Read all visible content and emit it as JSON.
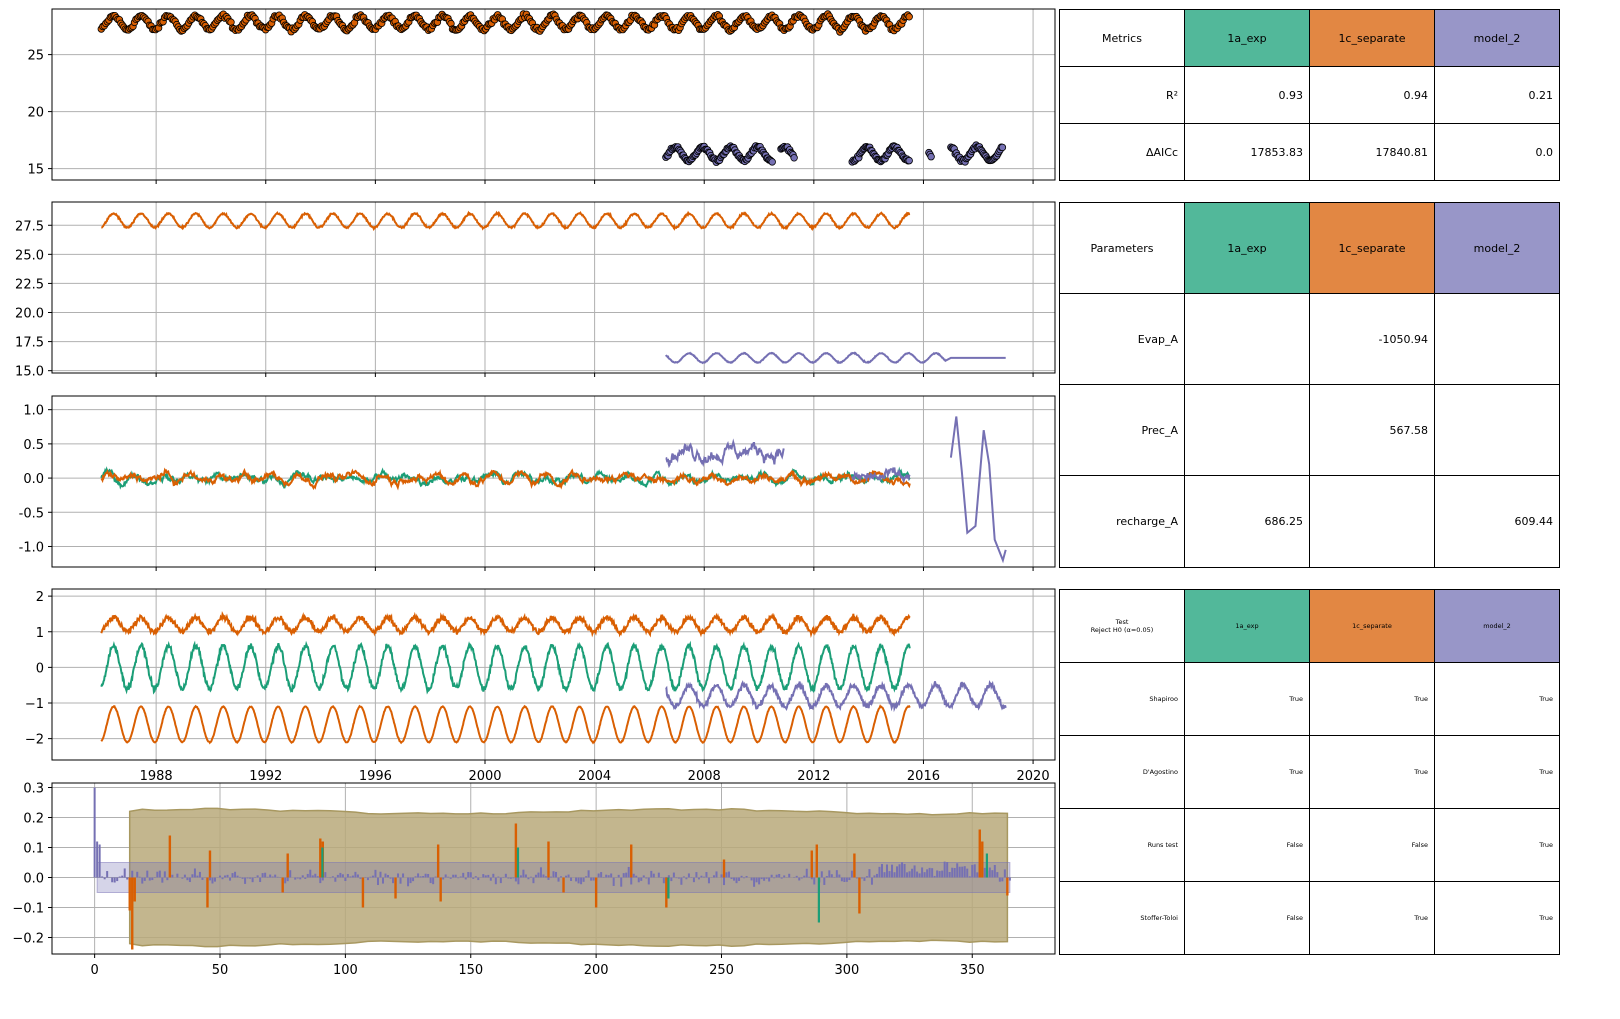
{
  "colors": {
    "green": "#1b9e77",
    "orange": "#d95f02",
    "purple": "#7570b3",
    "band": "#b8a97a",
    "grid": "#b0b0b0"
  },
  "chart_data": [
    {
      "type": "scatter",
      "ylim": [
        14,
        29
      ],
      "yticks": [
        "25",
        "20",
        "15"
      ],
      "series": [
        {
          "color": "orange",
          "x": [
            1986.0,
            2015.5
          ],
          "mean": 27.8,
          "amp": 0.6
        },
        {
          "color": "purple",
          "segments": [
            [
              2006.6,
              2010.5
            ],
            [
              2010.8,
              2011.3
            ],
            [
              2013.4,
              2015.5
            ],
            [
              2016.2,
              2016.3
            ],
            [
              2017.0,
              2018.9
            ]
          ],
          "mean": 16.3,
          "amp": 0.6
        }
      ]
    },
    {
      "type": "line",
      "ylim": [
        14.8,
        29.5
      ],
      "yticks": [
        "27.5",
        "25.0",
        "22.5",
        "20.0",
        "17.5",
        "15.0"
      ],
      "series": [
        {
          "color": "orange",
          "x": [
            1986.0,
            2015.5
          ],
          "mean": 27.9,
          "amp": 0.6
        },
        {
          "color": "purple",
          "x": [
            2006.6,
            2019.0
          ],
          "mean": 16.1,
          "amp": 0.4
        }
      ]
    },
    {
      "type": "line",
      "ylim": [
        -1.3,
        1.2
      ],
      "yticks": [
        "1.0",
        "0.5",
        "0.0",
        "-0.5",
        "-1.0"
      ],
      "series": [
        {
          "color": "green",
          "x": [
            1986.0,
            2015.5
          ]
        },
        {
          "color": "orange",
          "x": [
            1986.0,
            2015.5
          ]
        },
        {
          "color": "purple",
          "x": [
            2006.6,
            2019.0
          ]
        }
      ]
    },
    {
      "type": "line",
      "ylim": [
        -2.6,
        2.2
      ],
      "yticks": [
        "2",
        "1",
        "0",
        "−1",
        "−2"
      ],
      "xticks": [
        "1988",
        "1992",
        "1996",
        "2000",
        "2004",
        "2008",
        "2012",
        "2016",
        "2020"
      ],
      "series": [
        {
          "color": "orange",
          "x": [
            1986.0,
            2015.5
          ],
          "mean": 1.2,
          "amp": 0.2
        },
        {
          "color": "green",
          "x": [
            1986.0,
            2015.5
          ],
          "mean": 0.0,
          "amp": 0.6
        },
        {
          "color": "purple",
          "x": [
            2006.6,
            2019.0
          ],
          "mean": -0.8,
          "amp": 0.3
        },
        {
          "color": "orange",
          "x": [
            1986.0,
            2015.5
          ],
          "mean": -1.6,
          "amp": 0.5
        }
      ]
    },
    {
      "type": "bar",
      "xlim": [
        -17,
        383
      ],
      "ylim": [
        -0.255,
        0.315
      ],
      "yticks": [
        "0.3",
        "0.2",
        "0.1",
        "0.0",
        "−0.1",
        "−0.2"
      ],
      "xticks": [
        "0",
        "50",
        "100",
        "150",
        "200",
        "250",
        "300",
        "350"
      ],
      "conf_band": {
        "x": [
          14,
          365
        ],
        "y": [
          -0.22,
          0.22
        ]
      },
      "small_band": {
        "x": [
          1,
          365
        ],
        "y": [
          -0.05,
          0.05
        ]
      },
      "lags": [
        0,
        365
      ]
    }
  ],
  "metrics_table": {
    "header": [
      "Metrics",
      "1a_exp",
      "1c_separate",
      "model_2"
    ],
    "rows": [
      [
        "R²",
        "0.93",
        "0.94",
        "0.21"
      ],
      [
        "ΔAICc",
        "17853.83",
        "17840.81",
        "0.0"
      ]
    ]
  },
  "params_table": {
    "header": [
      "Parameters",
      "1a_exp",
      "1c_separate",
      "model_2"
    ],
    "rows": [
      [
        "Evap_A",
        "",
        "-1050.94",
        ""
      ],
      [
        "Prec_A",
        "",
        "567.58",
        ""
      ],
      [
        "recharge_A",
        "686.25",
        "",
        "609.44"
      ]
    ]
  },
  "tests_table": {
    "header_line1": "Test",
    "header_line2": "Reject H0 (α=0.05)",
    "header": [
      "1a_exp",
      "1c_separate",
      "model_2"
    ],
    "rows": [
      [
        "Shapiroo",
        "True",
        "True",
        "True"
      ],
      [
        "D'Agostino",
        "True",
        "True",
        "True"
      ],
      [
        "Runs test",
        "False",
        "False",
        "True"
      ],
      [
        "Stoffer-Toloi",
        "False",
        "True",
        "True"
      ]
    ]
  }
}
